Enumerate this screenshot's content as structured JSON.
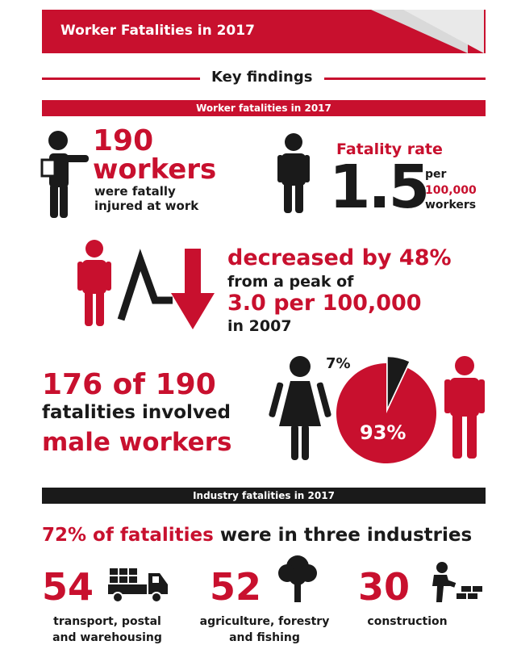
{
  "banner": {
    "title": "Worker Fatalities in 2017"
  },
  "key_findings": {
    "title": "Key findings"
  },
  "section1": {
    "title": "Worker fatalities in 2017"
  },
  "stat_workers": {
    "number": "190",
    "unit": "workers",
    "description": "were fatally injured at work"
  },
  "fatality_rate": {
    "label": "Fatality rate",
    "value": "1.5",
    "per": "per",
    "per_100k": "100,000",
    "workers": "workers"
  },
  "decrease": {
    "headline": "decreased by 48%",
    "from": "from a peak of",
    "peak": "3.0 per 100,000",
    "year": "in 2007"
  },
  "gender": {
    "headline": "176 of 190",
    "involved": "fatalities involved",
    "male": "male workers",
    "female_pct": "7%",
    "male_pct": "93%",
    "female_share": 0.07,
    "male_share": 0.93
  },
  "section2": {
    "title": "Industry fatalities in 2017"
  },
  "industries_headline": {
    "highlight": "72% of fatalities",
    "rest": " were in three industries"
  },
  "industries": [
    {
      "count": "54",
      "label_line1": "transport, postal",
      "label_line2": "and warehousing",
      "icon": "truck-icon"
    },
    {
      "count": "52",
      "label_line1": "agriculture, forestry",
      "label_line2": "and fishing",
      "icon": "tree-icon"
    },
    {
      "count": "30",
      "label_line1": "construction",
      "label_line2": "",
      "icon": "construction-worker-icon"
    }
  ],
  "colors": {
    "accent": "#c8102e",
    "dark": "#1a1a1a",
    "grey": "#d9d9d9"
  }
}
